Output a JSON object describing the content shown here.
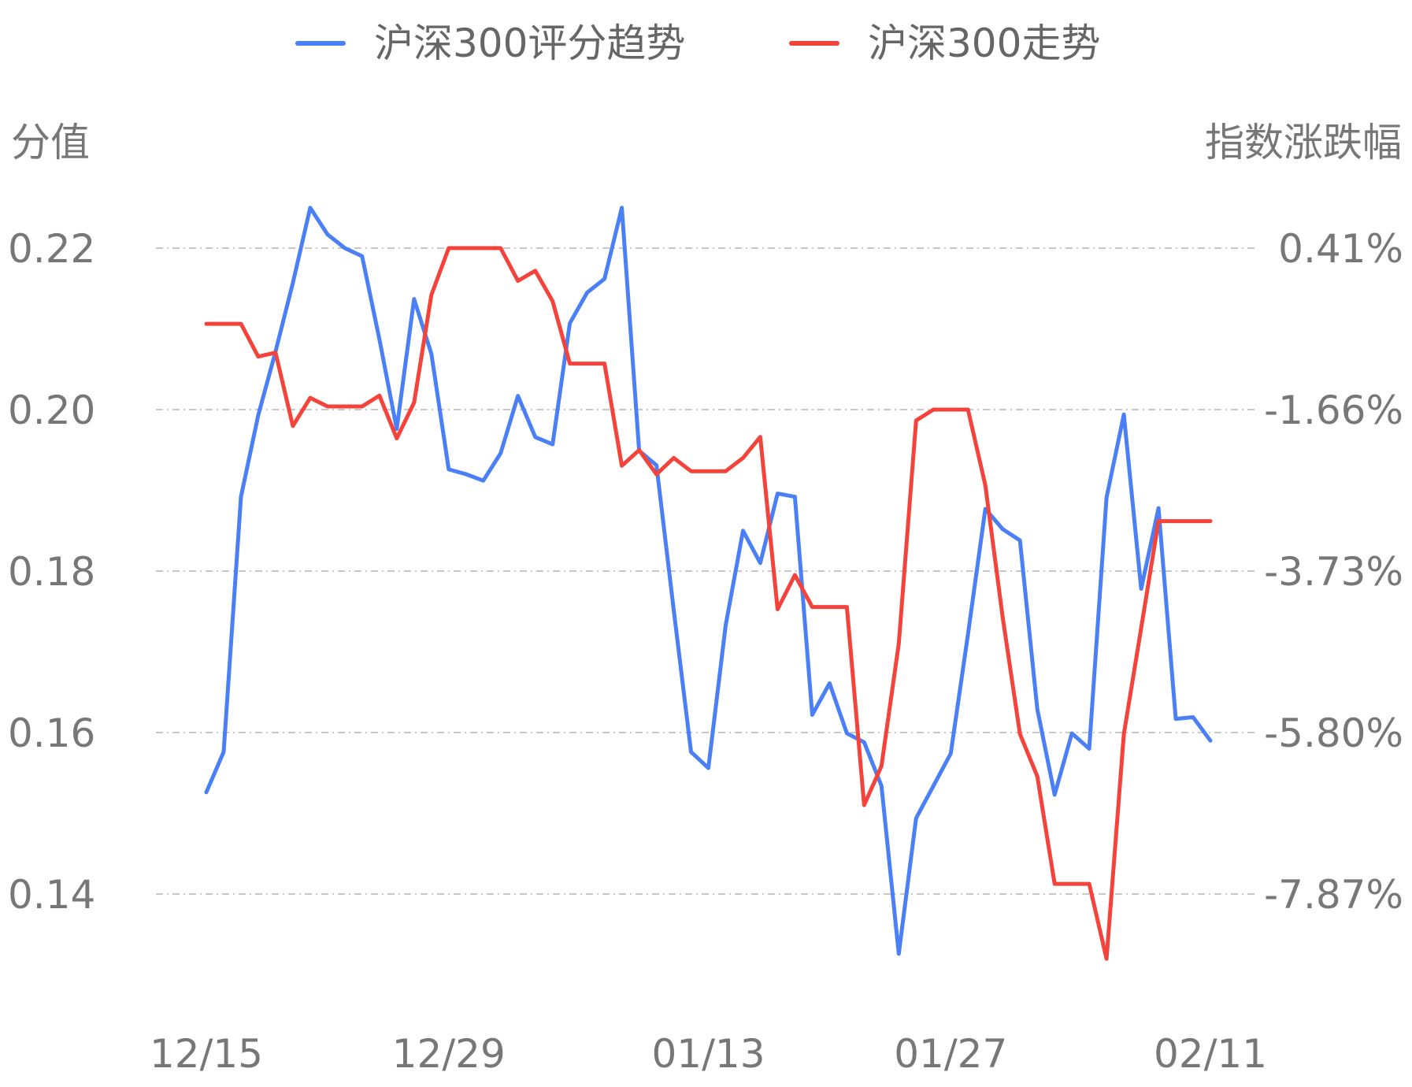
{
  "chart_data": {
    "type": "line",
    "legend_position": "top",
    "grid": true,
    "ylabel_left": "分值",
    "ylabel_right": "指数涨跌幅",
    "ylim_left": [
      0.14,
      0.22
    ],
    "ylim_right": [
      -7.87,
      0.41
    ],
    "yticks_left": [
      "0.22",
      "0.20",
      "0.18",
      "0.16",
      "0.14"
    ],
    "yticks_right": [
      "0.41%",
      "-1.66%",
      "-3.73%",
      "-5.80%",
      "-7.87%"
    ],
    "xticks": [
      "12/15",
      "12/29",
      "01/13",
      "01/27",
      "02/11"
    ],
    "xtick_index": [
      0,
      14,
      29,
      43,
      58
    ],
    "series": [
      {
        "name": "沪深300评分趋势",
        "color": "#4a7ff5",
        "axis": "left",
        "values": [
          0.1526,
          0.1576,
          0.1892,
          0.1993,
          0.2072,
          0.2157,
          0.225,
          0.2217,
          0.22,
          0.219,
          0.2087,
          0.1976,
          0.2137,
          0.2069,
          0.1926,
          0.192,
          0.1912,
          0.1946,
          0.2017,
          0.1966,
          0.1957,
          0.2107,
          0.2145,
          0.2162,
          0.225,
          0.1949,
          0.1931,
          0.1752,
          0.1576,
          0.1556,
          0.1733,
          0.185,
          0.181,
          0.1896,
          0.1892,
          0.1622,
          0.1661,
          0.1599,
          0.1588,
          0.1534,
          0.1326,
          0.1494,
          0.1534,
          0.1574,
          0.1722,
          0.1877,
          0.1852,
          0.1838,
          0.1629,
          0.1523,
          0.1599,
          0.158,
          0.1891,
          0.1994,
          0.1778,
          0.1878,
          0.1617,
          0.1619,
          0.159
        ]
      },
      {
        "name": "沪深300走势",
        "color": "#f4433b",
        "axis": "right",
        "values": [
          -0.56,
          -0.56,
          -0.56,
          -0.98,
          -0.93,
          -1.87,
          -1.51,
          -1.62,
          -1.62,
          -1.62,
          -1.48,
          -2.03,
          -1.57,
          -0.19,
          0.41,
          0.41,
          0.41,
          0.41,
          -0.01,
          0.12,
          -0.27,
          -1.07,
          -1.07,
          -1.07,
          -2.38,
          -2.18,
          -2.49,
          -2.28,
          -2.45,
          -2.45,
          -2.45,
          -2.28,
          -2.01,
          -4.22,
          -3.78,
          -4.19,
          -4.19,
          -4.19,
          -6.73,
          -6.23,
          -4.66,
          -1.8,
          -1.66,
          -1.66,
          -1.66,
          -2.63,
          -4.32,
          -5.82,
          -6.36,
          -7.74,
          -7.74,
          -7.74,
          -8.7,
          -5.82,
          -4.46,
          -3.09,
          -3.09,
          -3.09,
          -3.09
        ]
      }
    ]
  }
}
